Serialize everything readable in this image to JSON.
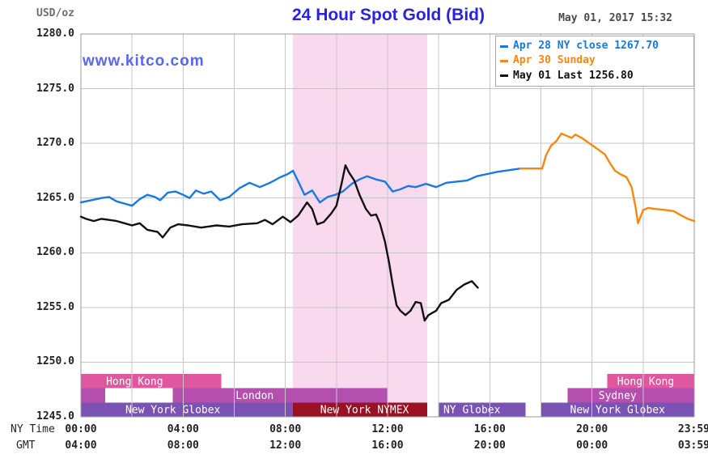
{
  "header": {
    "units_label": "USD/oz",
    "title": "24 Hour Spot Gold (Bid)",
    "timestamp": "May 01, 2017 15:32",
    "watermark": "www.kitco.com"
  },
  "legend": {
    "items": [
      {
        "label": "Apr 28 NY close 1267.70",
        "color": "#1779e6"
      },
      {
        "label": "Apr 30 Sunday",
        "color": "#f8870f"
      },
      {
        "label": "May 01 Last 1256.80",
        "color": "#111111"
      }
    ]
  },
  "axes": {
    "y_ticks": [
      "1280.0",
      "1275.0",
      "1270.0",
      "1265.0",
      "1260.0",
      "1255.0",
      "1250.0",
      "1245.0"
    ],
    "x_rows": [
      {
        "name": "NY Time",
        "labels": [
          "00:00",
          "04:00",
          "08:00",
          "12:00",
          "16:00",
          "20:00",
          "23:59"
        ]
      },
      {
        "name": "GMT",
        "labels": [
          "04:00",
          "08:00",
          "12:00",
          "16:00",
          "20:00",
          "00:00",
          "03:59"
        ]
      }
    ]
  },
  "colors": {
    "grid": "#c6c6c6",
    "plot_border": "#999999",
    "nymex_highlight": "#f9d9ed",
    "band_pink": "#e0579f",
    "band_magenta": "#b44fb0",
    "band_purple": "#7a52b4",
    "band_darkred": "#991122",
    "title_blue": "#2a22dd",
    "watermark_blue": "#5767ee"
  },
  "chart_data": {
    "type": "line",
    "title": "24 Hour Spot Gold (Bid)",
    "ylabel": "USD/oz",
    "ylim": [
      1245,
      1280
    ],
    "y_grid_step": 5,
    "x_unit": "hours since 00:00 NY time",
    "xlim_hours": [
      0,
      24
    ],
    "x_grid_step_hours": 2,
    "x_tick_hours": [
      0,
      4,
      8,
      12,
      16,
      20,
      23.983
    ],
    "grid": true,
    "legend_position": "top-right",
    "highlight_region": {
      "x_hours": [
        8.3,
        13.55
      ],
      "color": "#f9d9ed"
    },
    "series": [
      {
        "name": "Apr 28 NY close 1267.70",
        "color": "#1779e6",
        "points": [
          [
            0,
            1264.6
          ],
          [
            0.4,
            1264.8
          ],
          [
            0.8,
            1265.0
          ],
          [
            1.1,
            1265.1
          ],
          [
            1.4,
            1264.7
          ],
          [
            1.7,
            1264.5
          ],
          [
            2.0,
            1264.3
          ],
          [
            2.3,
            1264.9
          ],
          [
            2.6,
            1265.3
          ],
          [
            2.9,
            1265.1
          ],
          [
            3.1,
            1264.8
          ],
          [
            3.4,
            1265.5
          ],
          [
            3.7,
            1265.6
          ],
          [
            4.0,
            1265.3
          ],
          [
            4.25,
            1265.0
          ],
          [
            4.5,
            1265.7
          ],
          [
            4.8,
            1265.4
          ],
          [
            5.1,
            1265.6
          ],
          [
            5.45,
            1264.8
          ],
          [
            5.8,
            1265.1
          ],
          [
            6.2,
            1265.9
          ],
          [
            6.6,
            1266.4
          ],
          [
            7.0,
            1266.0
          ],
          [
            7.4,
            1266.4
          ],
          [
            7.8,
            1266.9
          ],
          [
            8.1,
            1267.2
          ],
          [
            8.3,
            1267.5
          ],
          [
            8.55,
            1266.3
          ],
          [
            8.75,
            1265.3
          ],
          [
            9.05,
            1265.7
          ],
          [
            9.35,
            1264.6
          ],
          [
            9.65,
            1265.1
          ],
          [
            9.95,
            1265.3
          ],
          [
            10.25,
            1265.6
          ],
          [
            10.6,
            1266.3
          ],
          [
            10.9,
            1266.7
          ],
          [
            11.2,
            1267.0
          ],
          [
            11.55,
            1266.7
          ],
          [
            11.9,
            1266.5
          ],
          [
            12.2,
            1265.6
          ],
          [
            12.5,
            1265.8
          ],
          [
            12.8,
            1266.1
          ],
          [
            13.1,
            1266.0
          ],
          [
            13.5,
            1266.3
          ],
          [
            13.9,
            1266.0
          ],
          [
            14.3,
            1266.4
          ],
          [
            14.7,
            1266.5
          ],
          [
            15.1,
            1266.6
          ],
          [
            15.5,
            1267.0
          ],
          [
            15.9,
            1267.2
          ],
          [
            16.3,
            1267.4
          ],
          [
            16.6,
            1267.5
          ],
          [
            16.9,
            1267.6
          ],
          [
            17.2,
            1267.7
          ]
        ]
      },
      {
        "name": "Apr 30 Sunday",
        "color": "#f8870f",
        "points": [
          [
            17.2,
            1267.7
          ],
          [
            18.05,
            1267.7
          ],
          [
            18.2,
            1268.9
          ],
          [
            18.4,
            1269.8
          ],
          [
            18.6,
            1270.2
          ],
          [
            18.8,
            1270.9
          ],
          [
            19.0,
            1270.7
          ],
          [
            19.2,
            1270.5
          ],
          [
            19.35,
            1270.8
          ],
          [
            19.6,
            1270.5
          ],
          [
            19.9,
            1270.0
          ],
          [
            20.2,
            1269.5
          ],
          [
            20.5,
            1269.0
          ],
          [
            20.7,
            1268.2
          ],
          [
            20.9,
            1267.5
          ],
          [
            21.1,
            1267.2
          ],
          [
            21.35,
            1266.9
          ],
          [
            21.55,
            1266.0
          ],
          [
            21.7,
            1264.2
          ],
          [
            21.8,
            1262.7
          ],
          [
            22.0,
            1263.9
          ],
          [
            22.2,
            1264.1
          ],
          [
            22.5,
            1264.0
          ],
          [
            22.9,
            1263.9
          ],
          [
            23.2,
            1263.8
          ],
          [
            23.5,
            1263.4
          ],
          [
            23.75,
            1263.1
          ],
          [
            24,
            1262.9
          ]
        ]
      },
      {
        "name": "May 01 Last 1256.80",
        "color": "#111111",
        "points": [
          [
            0,
            1263.3
          ],
          [
            0.2,
            1263.1
          ],
          [
            0.5,
            1262.9
          ],
          [
            0.8,
            1263.1
          ],
          [
            1.1,
            1263.0
          ],
          [
            1.4,
            1262.9
          ],
          [
            1.7,
            1262.7
          ],
          [
            2.0,
            1262.5
          ],
          [
            2.3,
            1262.7
          ],
          [
            2.6,
            1262.1
          ],
          [
            3.0,
            1261.9
          ],
          [
            3.2,
            1261.4
          ],
          [
            3.5,
            1262.3
          ],
          [
            3.8,
            1262.6
          ],
          [
            4.2,
            1262.5
          ],
          [
            4.7,
            1262.3
          ],
          [
            5.3,
            1262.5
          ],
          [
            5.8,
            1262.4
          ],
          [
            6.3,
            1262.6
          ],
          [
            6.9,
            1262.7
          ],
          [
            7.2,
            1263.0
          ],
          [
            7.5,
            1262.6
          ],
          [
            7.9,
            1263.3
          ],
          [
            8.2,
            1262.8
          ],
          [
            8.5,
            1263.4
          ],
          [
            8.85,
            1264.6
          ],
          [
            9.05,
            1264.0
          ],
          [
            9.25,
            1262.6
          ],
          [
            9.5,
            1262.8
          ],
          [
            9.8,
            1263.6
          ],
          [
            10.0,
            1264.3
          ],
          [
            10.2,
            1266.3
          ],
          [
            10.35,
            1268.0
          ],
          [
            10.5,
            1267.3
          ],
          [
            10.7,
            1266.6
          ],
          [
            10.9,
            1265.3
          ],
          [
            11.15,
            1264.0
          ],
          [
            11.35,
            1263.4
          ],
          [
            11.55,
            1263.5
          ],
          [
            11.7,
            1262.7
          ],
          [
            11.9,
            1261.0
          ],
          [
            12.05,
            1259.2
          ],
          [
            12.2,
            1257.1
          ],
          [
            12.35,
            1255.2
          ],
          [
            12.5,
            1254.7
          ],
          [
            12.7,
            1254.3
          ],
          [
            12.9,
            1254.7
          ],
          [
            13.1,
            1255.5
          ],
          [
            13.3,
            1255.4
          ],
          [
            13.45,
            1253.8
          ],
          [
            13.6,
            1254.3
          ],
          [
            13.9,
            1254.7
          ],
          [
            14.1,
            1255.4
          ],
          [
            14.4,
            1255.7
          ],
          [
            14.7,
            1256.6
          ],
          [
            15.0,
            1257.1
          ],
          [
            15.3,
            1257.4
          ],
          [
            15.53,
            1256.8
          ]
        ]
      }
    ],
    "session_bands": [
      {
        "row": 0,
        "label": "Hong Kong",
        "color": "#e0579f",
        "x_hours": [
          0,
          5.5
        ],
        "label_center_hour": 2.1
      },
      {
        "row": 0,
        "label": "Hong Kong",
        "color": "#e0579f",
        "x_hours": [
          20.6,
          24
        ],
        "label_center_hour": 22.1
      },
      {
        "row": 1,
        "label": "",
        "color": "#b44fb0",
        "x_hours": [
          0,
          0.95
        ],
        "label_center_hour": 0.5
      },
      {
        "row": 1,
        "label": "London",
        "color": "#b44fb0",
        "x_hours": [
          3.6,
          12.0
        ],
        "label_center_hour": 6.8
      },
      {
        "row": 1,
        "label": "Sydney",
        "color": "#b44fb0",
        "x_hours": [
          19.05,
          24
        ],
        "label_center_hour": 21.0
      },
      {
        "row": 2,
        "label": "New York Globex",
        "color": "#7a52b4",
        "x_hours": [
          0,
          8.3
        ],
        "label_center_hour": 3.6
      },
      {
        "row": 2,
        "label": "New York NYMEX",
        "color": "#991122",
        "x_hours": [
          8.3,
          13.55
        ],
        "label_center_hour": 11.1
      },
      {
        "row": 2,
        "label": "NY Globex",
        "color": "#7a52b4",
        "x_hours": [
          14.0,
          17.4
        ],
        "label_center_hour": 15.3
      },
      {
        "row": 2,
        "label": "New York Globex",
        "color": "#7a52b4",
        "x_hours": [
          18.0,
          24
        ],
        "label_center_hour": 21.0
      }
    ]
  }
}
